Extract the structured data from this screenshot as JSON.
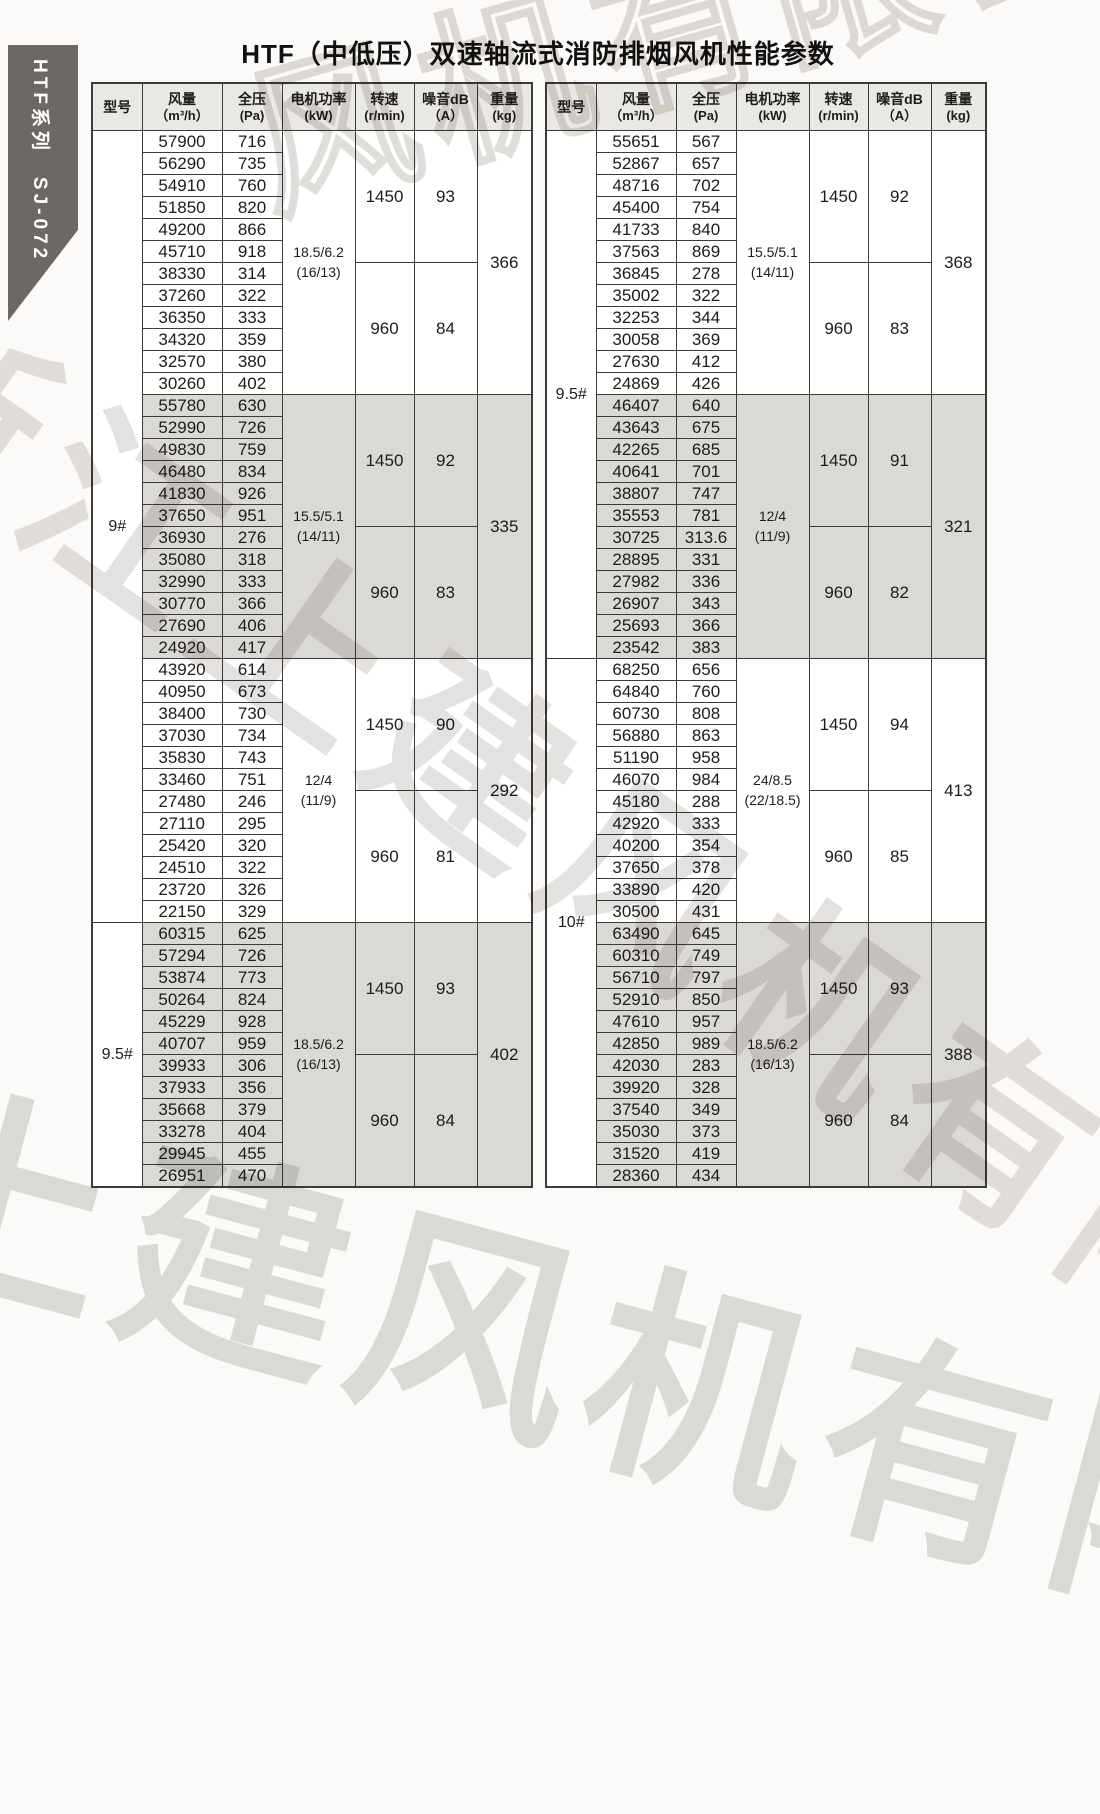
{
  "page": {
    "title": "HTF（中低压）双速轴流式消防排烟风机性能参数",
    "sidebar_label": "HTF系列　SJ-072",
    "watermarks": {
      "top_right": "风机有限公司",
      "diagonal": "浙江上建风机有限公司",
      "bottom": "上建风机有限公司"
    },
    "colors": {
      "tab_bg": "#6e6865",
      "header_bg": "#eae8e5",
      "shaded_row_bg": "#dbd9d5",
      "border": "#3d3b39"
    }
  },
  "columns": [
    {
      "key": "model",
      "label": "型号",
      "unit": ""
    },
    {
      "key": "flow",
      "label": "风量",
      "unit": "（m³/h）"
    },
    {
      "key": "pressure",
      "label": "全压",
      "unit": "(Pa)"
    },
    {
      "key": "power",
      "label": "电机功率",
      "unit": "(kW)"
    },
    {
      "key": "speed",
      "label": "转速",
      "unit": "(r/min)"
    },
    {
      "key": "noise",
      "label": "噪音dB",
      "unit": "（A）"
    },
    {
      "key": "weight",
      "label": "重量",
      "unit": "(kg)"
    }
  ],
  "tables": [
    {
      "models": [
        {
          "label": "9#",
          "groups": 3
        },
        {
          "label": "9.5#",
          "groups": 1
        }
      ],
      "groups": [
        {
          "power": "18.5/6.2\n(16/13)",
          "weight": "366",
          "shaded": false,
          "speeds": [
            {
              "speed": "1450",
              "noise": "93",
              "rows": [
                [
                  "57900",
                  "716"
                ],
                [
                  "56290",
                  "735"
                ],
                [
                  "54910",
                  "760"
                ],
                [
                  "51850",
                  "820"
                ],
                [
                  "49200",
                  "866"
                ],
                [
                  "45710",
                  "918"
                ]
              ]
            },
            {
              "speed": "960",
              "noise": "84",
              "rows": [
                [
                  "38330",
                  "314"
                ],
                [
                  "37260",
                  "322"
                ],
                [
                  "36350",
                  "333"
                ],
                [
                  "34320",
                  "359"
                ],
                [
                  "32570",
                  "380"
                ],
                [
                  "30260",
                  "402"
                ]
              ]
            }
          ]
        },
        {
          "power": "15.5/5.1\n(14/11)",
          "weight": "335",
          "shaded": true,
          "speeds": [
            {
              "speed": "1450",
              "noise": "92",
              "rows": [
                [
                  "55780",
                  "630"
                ],
                [
                  "52990",
                  "726"
                ],
                [
                  "49830",
                  "759"
                ],
                [
                  "46480",
                  "834"
                ],
                [
                  "41830",
                  "926"
                ],
                [
                  "37650",
                  "951"
                ]
              ]
            },
            {
              "speed": "960",
              "noise": "83",
              "rows": [
                [
                  "36930",
                  "276"
                ],
                [
                  "35080",
                  "318"
                ],
                [
                  "32990",
                  "333"
                ],
                [
                  "30770",
                  "366"
                ],
                [
                  "27690",
                  "406"
                ],
                [
                  "24920",
                  "417"
                ]
              ]
            }
          ]
        },
        {
          "power": "12/4\n(11/9)",
          "weight": "292",
          "shaded": false,
          "speeds": [
            {
              "speed": "1450",
              "noise": "90",
              "rows": [
                [
                  "43920",
                  "614"
                ],
                [
                  "40950",
                  "673"
                ],
                [
                  "38400",
                  "730"
                ],
                [
                  "37030",
                  "734"
                ],
                [
                  "35830",
                  "743"
                ],
                [
                  "33460",
                  "751"
                ]
              ]
            },
            {
              "speed": "960",
              "noise": "81",
              "rows": [
                [
                  "27480",
                  "246"
                ],
                [
                  "27110",
                  "295"
                ],
                [
                  "25420",
                  "320"
                ],
                [
                  "24510",
                  "322"
                ],
                [
                  "23720",
                  "326"
                ],
                [
                  "22150",
                  "329"
                ]
              ]
            }
          ]
        },
        {
          "power": "18.5/6.2\n(16/13)",
          "weight": "402",
          "shaded": true,
          "speeds": [
            {
              "speed": "1450",
              "noise": "93",
              "rows": [
                [
                  "60315",
                  "625"
                ],
                [
                  "57294",
                  "726"
                ],
                [
                  "53874",
                  "773"
                ],
                [
                  "50264",
                  "824"
                ],
                [
                  "45229",
                  "928"
                ],
                [
                  "40707",
                  "959"
                ]
              ]
            },
            {
              "speed": "960",
              "noise": "84",
              "rows": [
                [
                  "39933",
                  "306"
                ],
                [
                  "37933",
                  "356"
                ],
                [
                  "35668",
                  "379"
                ],
                [
                  "33278",
                  "404"
                ],
                [
                  "29945",
                  "455"
                ],
                [
                  "26951",
                  "470"
                ]
              ]
            }
          ]
        }
      ]
    },
    {
      "models": [
        {
          "label": "9.5#",
          "groups": 2
        },
        {
          "label": "10#",
          "groups": 2
        }
      ],
      "groups": [
        {
          "power": "15.5/5.1\n(14/11)",
          "weight": "368",
          "shaded": false,
          "speeds": [
            {
              "speed": "1450",
              "noise": "92",
              "rows": [
                [
                  "55651",
                  "567"
                ],
                [
                  "52867",
                  "657"
                ],
                [
                  "48716",
                  "702"
                ],
                [
                  "45400",
                  "754"
                ],
                [
                  "41733",
                  "840"
                ],
                [
                  "37563",
                  "869"
                ]
              ]
            },
            {
              "speed": "960",
              "noise": "83",
              "rows": [
                [
                  "36845",
                  "278"
                ],
                [
                  "35002",
                  "322"
                ],
                [
                  "32253",
                  "344"
                ],
                [
                  "30058",
                  "369"
                ],
                [
                  "27630",
                  "412"
                ],
                [
                  "24869",
                  "426"
                ]
              ]
            }
          ]
        },
        {
          "power": "12/4\n(11/9)",
          "weight": "321",
          "shaded": true,
          "speeds": [
            {
              "speed": "1450",
              "noise": "91",
              "rows": [
                [
                  "46407",
                  "640"
                ],
                [
                  "43643",
                  "675"
                ],
                [
                  "42265",
                  "685"
                ],
                [
                  "40641",
                  "701"
                ],
                [
                  "38807",
                  "747"
                ],
                [
                  "35553",
                  "781"
                ]
              ]
            },
            {
              "speed": "960",
              "noise": "82",
              "rows": [
                [
                  "30725",
                  "313.6"
                ],
                [
                  "28895",
                  "331"
                ],
                [
                  "27982",
                  "336"
                ],
                [
                  "26907",
                  "343"
                ],
                [
                  "25693",
                  "366"
                ],
                [
                  "23542",
                  "383"
                ]
              ]
            }
          ]
        },
        {
          "power": "24/8.5\n(22/18.5)",
          "weight": "413",
          "shaded": false,
          "speeds": [
            {
              "speed": "1450",
              "noise": "94",
              "rows": [
                [
                  "68250",
                  "656"
                ],
                [
                  "64840",
                  "760"
                ],
                [
                  "60730",
                  "808"
                ],
                [
                  "56880",
                  "863"
                ],
                [
                  "51190",
                  "958"
                ],
                [
                  "46070",
                  "984"
                ]
              ]
            },
            {
              "speed": "960",
              "noise": "85",
              "rows": [
                [
                  "45180",
                  "288"
                ],
                [
                  "42920",
                  "333"
                ],
                [
                  "40200",
                  "354"
                ],
                [
                  "37650",
                  "378"
                ],
                [
                  "33890",
                  "420"
                ],
                [
                  "30500",
                  "431"
                ]
              ]
            }
          ]
        },
        {
          "power": "18.5/6.2\n(16/13)",
          "weight": "388",
          "shaded": true,
          "speeds": [
            {
              "speed": "1450",
              "noise": "93",
              "rows": [
                [
                  "63490",
                  "645"
                ],
                [
                  "60310",
                  "749"
                ],
                [
                  "56710",
                  "797"
                ],
                [
                  "52910",
                  "850"
                ],
                [
                  "47610",
                  "957"
                ],
                [
                  "42850",
                  "989"
                ]
              ]
            },
            {
              "speed": "960",
              "noise": "84",
              "rows": [
                [
                  "42030",
                  "283"
                ],
                [
                  "39920",
                  "328"
                ],
                [
                  "37540",
                  "349"
                ],
                [
                  "35030",
                  "373"
                ],
                [
                  "31520",
                  "419"
                ],
                [
                  "28360",
                  "434"
                ]
              ]
            }
          ]
        }
      ]
    }
  ]
}
